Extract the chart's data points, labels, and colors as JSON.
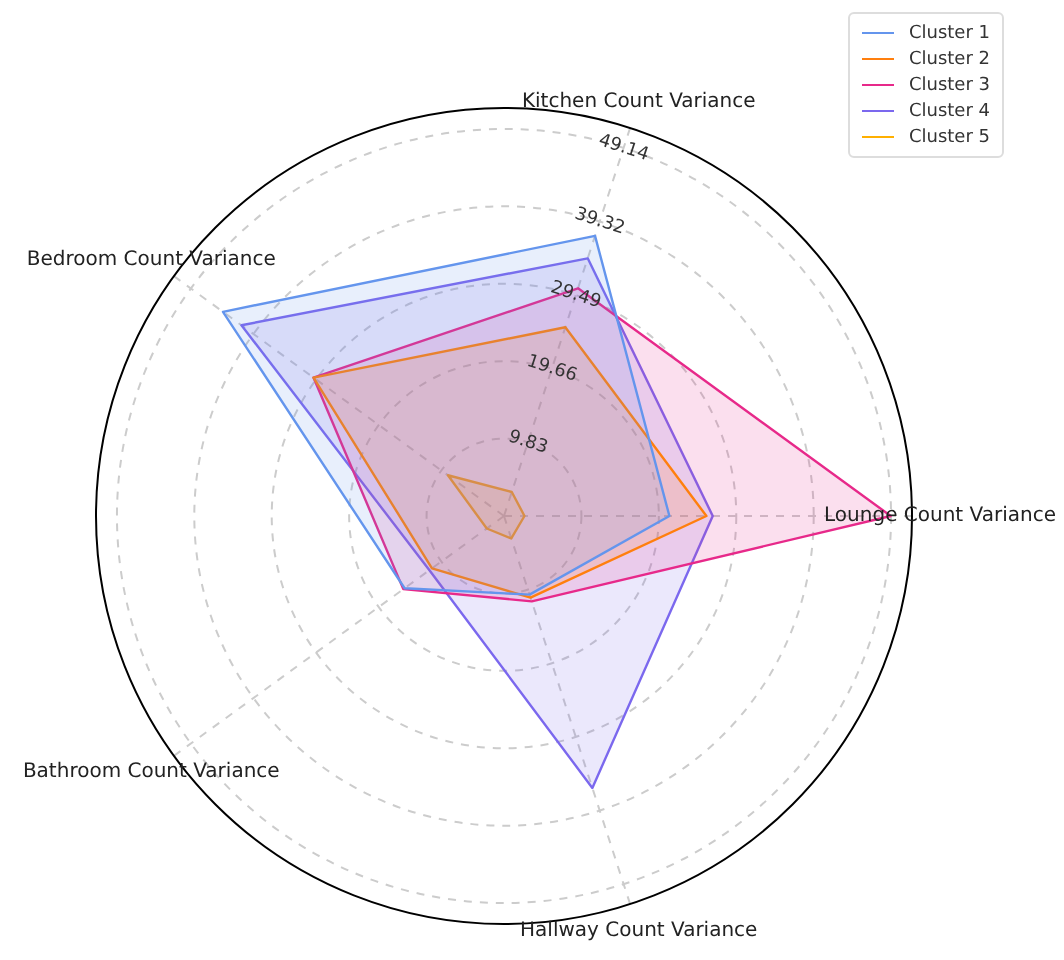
{
  "chart_data": {
    "type": "radar",
    "categories": [
      "Kitchen Count Variance",
      "Lounge Count Variance",
      "Hallway Count Variance",
      "Bathroom Count Variance",
      "Bedroom Count Variance"
    ],
    "series": [
      {
        "name": "Cluster 1",
        "color": "#6495ed",
        "values": [
          37.4,
          21.0,
          10.5,
          15.6,
          44.1
        ]
      },
      {
        "name": "Cluster 2",
        "color": "#ff7f0e",
        "values": [
          25.2,
          25.7,
          10.9,
          11.3,
          29.9
        ]
      },
      {
        "name": "Cluster 3",
        "color": "#e7298a",
        "values": [
          30.4,
          49.1,
          11.4,
          15.8,
          29.9
        ]
      },
      {
        "name": "Cluster 4",
        "color": "#7b68ee",
        "values": [
          34.4,
          26.5,
          36.3,
          11.7,
          41.2
        ]
      },
      {
        "name": "Cluster 5",
        "color": "#ffb000",
        "values": [
          3.2,
          2.6,
          3.0,
          2.7,
          8.8
        ]
      }
    ],
    "ylim": [
      0,
      51.8
    ],
    "yticks": [
      9.83,
      19.66,
      29.49,
      39.32,
      49.14
    ],
    "grid": true,
    "legend": "top right",
    "marker": "none",
    "line_style": "solid"
  }
}
